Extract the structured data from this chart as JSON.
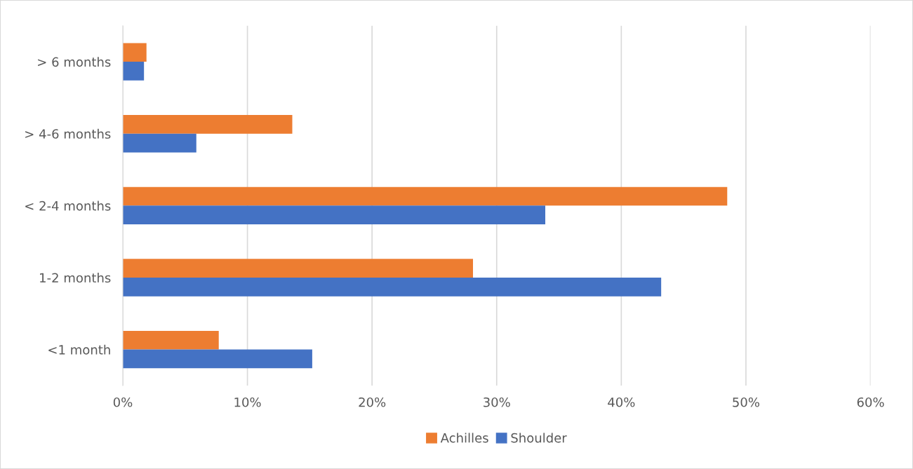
{
  "chart_data": {
    "type": "bar",
    "orientation": "horizontal",
    "categories": [
      "> 6 months",
      "> 4-6 months",
      "< 2-4 months",
      "1-2 months",
      "<1 month"
    ],
    "series": [
      {
        "name": "Achilles",
        "color": "#ed7d31",
        "values": [
          1.9,
          13.6,
          48.5,
          28.1,
          7.7
        ]
      },
      {
        "name": "Shoulder",
        "color": "#4472c4",
        "values": [
          1.7,
          5.9,
          33.9,
          43.2,
          15.2
        ]
      }
    ],
    "xlim": [
      0,
      60
    ],
    "xticks": [
      {
        "value": 0,
        "label": "0%"
      },
      {
        "value": 10,
        "label": "10%"
      },
      {
        "value": 20,
        "label": "20%"
      },
      {
        "value": 30,
        "label": "30%"
      },
      {
        "value": 40,
        "label": "40%"
      },
      {
        "value": 50,
        "label": "50%"
      },
      {
        "value": 60,
        "label": "60%"
      }
    ],
    "grid": "x",
    "legend": "bottom"
  }
}
